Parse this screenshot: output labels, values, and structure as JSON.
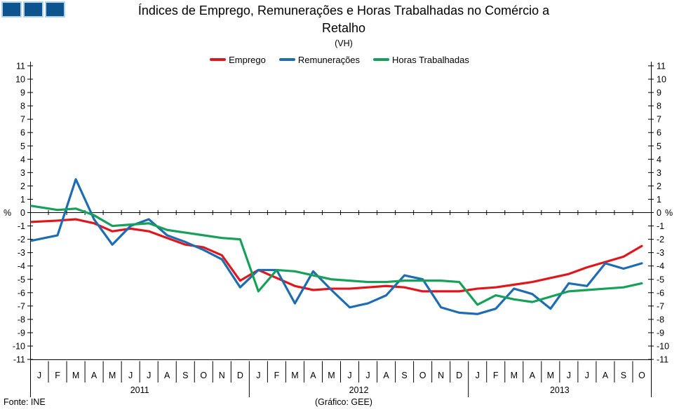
{
  "header": {
    "title_lines": [
      "Índices de Emprego,  Remunerações e Horas Trabalhadas  no Comércio a",
      "Retalho"
    ],
    "subtitle": "(VH)"
  },
  "footer": {
    "source": "Fonte:  INE",
    "credit": "(Gráfico:  GEE)"
  },
  "chart_data": {
    "type": "line",
    "title": "Índices de Emprego, Remunerações e Horas Trabalhadas no Comércio a Retalho",
    "subtitle": "(VH)",
    "legend_position": "top",
    "grid": false,
    "y_axis": {
      "min": -11,
      "max": 11,
      "step": 1,
      "unit_label": "%",
      "label_both_sides": true
    },
    "x_months": [
      "J",
      "F",
      "M",
      "A",
      "M",
      "J",
      "J",
      "A",
      "S",
      "O",
      "N",
      "D",
      "J",
      "F",
      "M",
      "A",
      "M",
      "J",
      "J",
      "A",
      "S",
      "O",
      "N",
      "D",
      "J",
      "F",
      "M",
      "A",
      "M",
      "J",
      "J",
      "A",
      "S",
      "O"
    ],
    "years": [
      {
        "label": "2011",
        "months": 12
      },
      {
        "label": "2012",
        "months": 12
      },
      {
        "label": "2013",
        "months": 10
      }
    ],
    "series": [
      {
        "id": "emprego",
        "name": "Emprego",
        "color": "#e0161d",
        "values": [
          -0.7,
          -0.6,
          -0.5,
          -0.8,
          -1.4,
          -1.2,
          -1.4,
          -1.9,
          -2.4,
          -2.6,
          -3.2,
          -5.1,
          -4.3,
          -4.9,
          -5.5,
          -5.8,
          -5.7,
          -5.7,
          -5.6,
          -5.5,
          -5.6,
          -5.9,
          -5.9,
          -5.9,
          -5.7,
          -5.6,
          -5.4,
          -5.2,
          -4.9,
          -4.6,
          -4.1,
          -3.7,
          -3.3,
          -2.5
        ]
      },
      {
        "id": "remuneracoes",
        "name": "Remunerações",
        "color": "#1e6cb2",
        "values": [
          -2.1,
          -1.7,
          2.5,
          -0.5,
          -2.4,
          -1.0,
          -0.5,
          -1.7,
          -2.2,
          -2.8,
          -3.5,
          -5.6,
          -4.3,
          -4.3,
          -6.8,
          -4.4,
          -5.8,
          -7.1,
          -6.8,
          -6.2,
          -4.7,
          -5.0,
          -7.1,
          -7.5,
          -7.6,
          -7.2,
          -5.7,
          -6.1,
          -7.2,
          -5.3,
          -5.5,
          -3.8,
          -4.2,
          -3.8
        ]
      },
      {
        "id": "horas-trabalhadas",
        "name": "Horas Trabalhadas",
        "color": "#16a05a",
        "values": [
          0.5,
          0.2,
          0.3,
          -0.2,
          -1.0,
          -0.9,
          -0.8,
          -1.3,
          -1.5,
          -1.7,
          -1.9,
          -2.0,
          -5.9,
          -4.3,
          -4.4,
          -4.7,
          -5.0,
          -5.1,
          -5.2,
          -5.2,
          -5.1,
          -5.1,
          -5.1,
          -5.2,
          -6.9,
          -6.2,
          -6.5,
          -6.7,
          -6.3,
          -5.9,
          -5.8,
          -5.7,
          -5.6,
          -5.3
        ]
      }
    ]
  }
}
